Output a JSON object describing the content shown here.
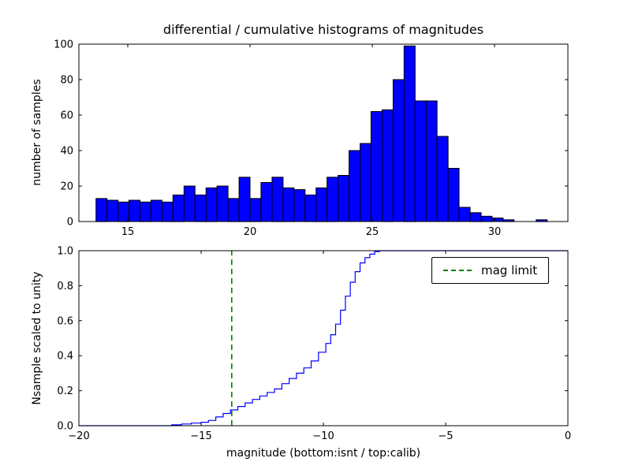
{
  "figure": {
    "title": "differential / cumulative histograms of magnitudes",
    "background": "#ffffff"
  },
  "chart_data": [
    {
      "type": "bar",
      "name": "differential-histogram",
      "ylabel": "number of samples",
      "xlim": [
        13,
        33
      ],
      "ylim": [
        0,
        100
      ],
      "xticks": [
        15,
        20,
        25,
        30
      ],
      "xtick_labels": [
        "15",
        "20",
        "25",
        "30"
      ],
      "yticks": [
        0,
        20,
        40,
        60,
        80,
        100
      ],
      "ytick_labels": [
        "0",
        "20",
        "40",
        "60",
        "80",
        "100"
      ],
      "bin_start": 13.7,
      "bin_width": 0.45,
      "counts": [
        13,
        12,
        11,
        12,
        11,
        12,
        11,
        15,
        20,
        15,
        19,
        20,
        13,
        25,
        13,
        22,
        25,
        19,
        18,
        15,
        19,
        25,
        26,
        40,
        44,
        62,
        63,
        80,
        99,
        68,
        68,
        48,
        30,
        8,
        5,
        3,
        2,
        1,
        0,
        0,
        1
      ],
      "bar_color": "#0000ff",
      "bar_edge": "#000000",
      "grid": false
    },
    {
      "type": "line",
      "name": "cumulative-histogram",
      "ylabel": "Nsample scaled to unity",
      "xlabel": "magnitude (bottom:isnt / top:calib)",
      "xlim": [
        -20,
        0
      ],
      "ylim": [
        0,
        1
      ],
      "xticks": [
        -20,
        -15,
        -10,
        -5,
        0
      ],
      "xtick_labels": [
        "−20",
        "−15",
        "−10",
        "−5",
        "0"
      ],
      "yticks": [
        0,
        0.2,
        0.4,
        0.6,
        0.8,
        1
      ],
      "ytick_labels": [
        "0.0",
        "0.2",
        "0.4",
        "0.6",
        "0.8",
        "1.0"
      ],
      "steps": {
        "x": [
          -16.2,
          -15.8,
          -15.4,
          -15.0,
          -14.7,
          -14.4,
          -14.1,
          -13.8,
          -13.5,
          -13.2,
          -12.9,
          -12.6,
          -12.3,
          -12.0,
          -11.7,
          -11.4,
          -11.1,
          -10.8,
          -10.5,
          -10.2,
          -9.9,
          -9.7,
          -9.5,
          -9.3,
          -9.1,
          -8.9,
          -8.7,
          -8.5,
          -8.3,
          -8.1,
          -7.9,
          -7.7
        ],
        "y": [
          0.005,
          0.01,
          0.015,
          0.02,
          0.03,
          0.05,
          0.07,
          0.09,
          0.11,
          0.13,
          0.15,
          0.17,
          0.19,
          0.21,
          0.24,
          0.27,
          0.3,
          0.33,
          0.37,
          0.42,
          0.47,
          0.52,
          0.58,
          0.66,
          0.74,
          0.82,
          0.88,
          0.93,
          0.96,
          0.98,
          0.995,
          1.0
        ]
      },
      "line_color": "#0000ff",
      "legend": {
        "label": "mag limit",
        "position": "upper right"
      },
      "mag_limit": {
        "x": -13.75,
        "color": "#008000"
      },
      "grid": false
    }
  ]
}
